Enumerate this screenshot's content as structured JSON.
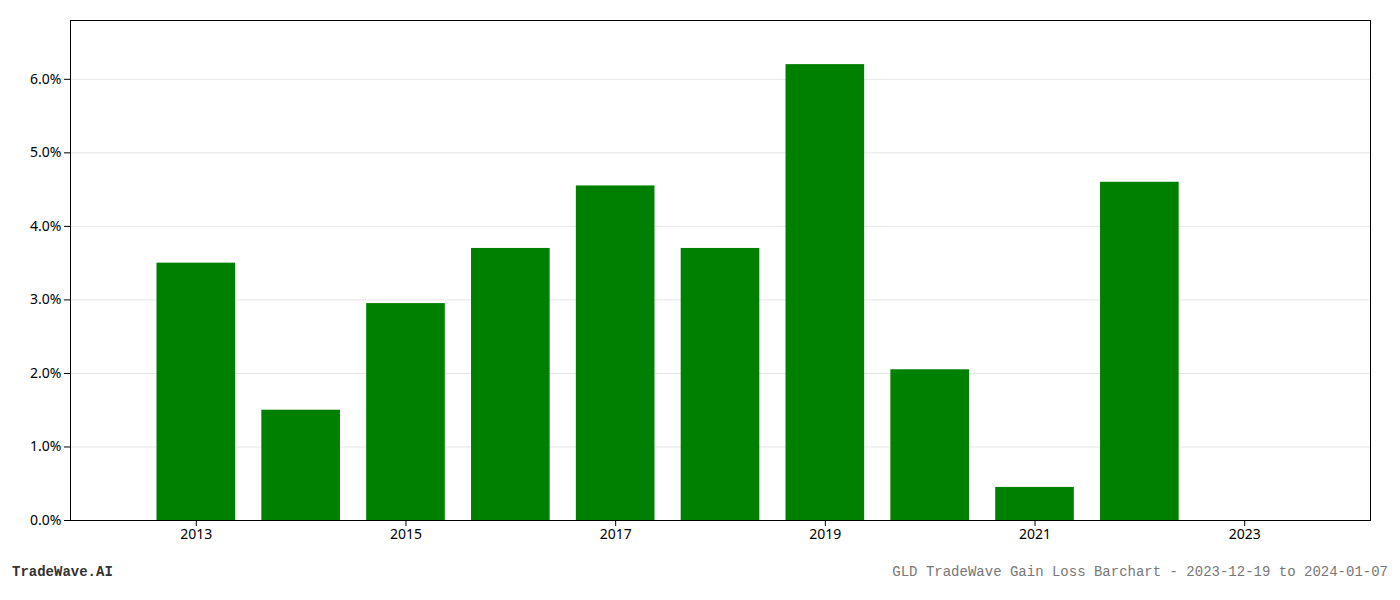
{
  "chart_data": {
    "type": "bar",
    "x": [
      2013,
      2014,
      2015,
      2016,
      2017,
      2018,
      2019,
      2020,
      2021,
      2022
    ],
    "values": [
      0.035,
      0.015,
      0.0295,
      0.037,
      0.0455,
      0.037,
      0.062,
      0.0205,
      0.0045,
      0.046
    ],
    "color": "#008000",
    "xlim": [
      2011.8,
      2024.2
    ],
    "xticks": [
      2013,
      2015,
      2017,
      2019,
      2021,
      2023
    ],
    "ylim": [
      0,
      0.068
    ],
    "yticks": [
      {
        "value": 0.0,
        "label": "0.0%"
      },
      {
        "value": 0.01,
        "label": "1.0%"
      },
      {
        "value": 0.02,
        "label": "2.0%"
      },
      {
        "value": 0.03,
        "label": "3.0%"
      },
      {
        "value": 0.04,
        "label": "4.0%"
      },
      {
        "value": 0.05,
        "label": "5.0%"
      },
      {
        "value": 0.06,
        "label": "6.0%"
      }
    ],
    "grid": true,
    "annotations": [
      "TradeWave.AI",
      "GLD TradeWave Gain Loss Barchart - 2023-12-19 to 2024-01-07"
    ]
  }
}
